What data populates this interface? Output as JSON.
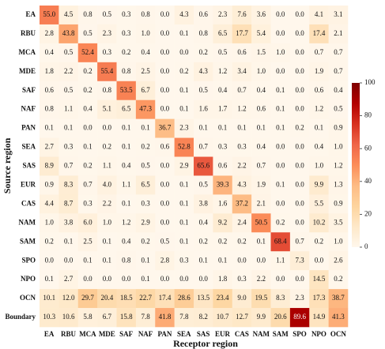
{
  "chart_data": {
    "type": "heatmap",
    "x_label": "Receptor region",
    "y_label": "Source region",
    "x_categories": [
      "EA",
      "RBU",
      "MCA",
      "MDE",
      "SAF",
      "NAF",
      "PAN",
      "SEA",
      "SAS",
      "EUR",
      "CAS",
      "NAM",
      "SAM",
      "SPO",
      "NPO",
      "OCN"
    ],
    "y_categories": [
      "EA",
      "RBU",
      "MCA",
      "MDE",
      "SAF",
      "NAF",
      "PAN",
      "SEA",
      "SAS",
      "EUR",
      "CAS",
      "NAM",
      "SAM",
      "SPO",
      "NPO",
      "OCN",
      "Boundary"
    ],
    "values": [
      [
        55.0,
        4.5,
        0.8,
        0.5,
        0.3,
        0.8,
        0.0,
        4.3,
        0.6,
        2.3,
        7.6,
        3.6,
        0.0,
        0.0,
        4.1,
        3.1
      ],
      [
        2.8,
        43.8,
        0.5,
        2.3,
        0.3,
        1.0,
        0.0,
        0.1,
        0.8,
        6.5,
        17.7,
        5.4,
        0.0,
        0.0,
        17.4,
        2.1
      ],
      [
        0.4,
        0.5,
        52.4,
        0.3,
        0.2,
        0.4,
        0.0,
        0.0,
        0.2,
        0.5,
        0.6,
        1.5,
        1.0,
        0.0,
        0.7,
        0.7
      ],
      [
        1.8,
        2.2,
        0.2,
        55.4,
        0.8,
        2.5,
        0.0,
        0.2,
        4.3,
        1.2,
        3.4,
        1.0,
        0.0,
        0.0,
        1.9,
        0.7
      ],
      [
        0.6,
        0.5,
        0.2,
        0.8,
        53.5,
        6.7,
        0.0,
        0.1,
        0.5,
        0.4,
        0.7,
        0.4,
        0.1,
        0.0,
        0.6,
        0.4
      ],
      [
        0.8,
        1.1,
        0.4,
        5.1,
        6.5,
        47.3,
        0.0,
        0.1,
        1.6,
        1.7,
        1.2,
        0.6,
        0.1,
        0.0,
        1.2,
        0.5
      ],
      [
        0.1,
        0.1,
        0.0,
        0.0,
        0.1,
        0.1,
        36.7,
        2.3,
        0.1,
        0.1,
        0.1,
        0.1,
        0.1,
        0.2,
        0.1,
        0.9
      ],
      [
        2.7,
        0.3,
        0.1,
        0.2,
        0.1,
        0.2,
        0.6,
        52.8,
        0.7,
        0.3,
        0.3,
        0.4,
        0.0,
        0.0,
        0.4,
        1.0
      ],
      [
        8.9,
        0.7,
        0.2,
        1.1,
        0.4,
        0.5,
        0.0,
        2.9,
        65.6,
        0.6,
        2.2,
        0.7,
        0.0,
        0.0,
        1.0,
        1.2
      ],
      [
        0.9,
        8.3,
        0.7,
        4.0,
        1.1,
        6.5,
        0.0,
        0.1,
        0.5,
        39.3,
        4.3,
        1.9,
        0.1,
        0.0,
        9.9,
        1.3
      ],
      [
        4.4,
        8.7,
        0.3,
        2.2,
        0.1,
        0.3,
        0.0,
        0.1,
        3.8,
        1.6,
        37.2,
        2.1,
        0.0,
        0.0,
        5.5,
        0.9
      ],
      [
        1.0,
        3.8,
        6.0,
        1.0,
        1.2,
        2.9,
        0.0,
        0.1,
        0.4,
        9.2,
        2.4,
        50.5,
        0.2,
        0.0,
        10.2,
        3.5
      ],
      [
        0.2,
        0.1,
        2.5,
        0.1,
        0.4,
        0.2,
        0.5,
        0.1,
        0.2,
        0.2,
        0.2,
        0.1,
        68.4,
        0.7,
        0.2,
        1.0
      ],
      [
        0.0,
        0.0,
        0.1,
        0.1,
        0.8,
        0.1,
        2.8,
        0.3,
        0.1,
        0.1,
        0.0,
        0.0,
        1.1,
        7.3,
        0.0,
        2.6
      ],
      [
        0.1,
        2.7,
        0.0,
        0.0,
        0.0,
        0.1,
        0.0,
        0.0,
        0.0,
        1.8,
        0.3,
        2.2,
        0.0,
        0.0,
        14.5,
        0.2
      ],
      [
        10.1,
        12.0,
        29.7,
        20.4,
        18.5,
        22.7,
        17.4,
        28.6,
        13.5,
        23.4,
        9.0,
        19.5,
        8.3,
        2.3,
        17.3,
        38.7
      ],
      [
        10.3,
        10.6,
        5.8,
        6.7,
        15.8,
        7.8,
        41.8,
        7.8,
        8.2,
        10.7,
        12.7,
        9.9,
        20.6,
        89.6,
        14.9,
        41.3
      ]
    ],
    "value_labels": [
      [
        "55.0",
        "4.5",
        "0.8",
        "0.5",
        "0.3",
        "0.8",
        "0.0",
        "4.3",
        "0.6",
        "2.3",
        "7.6",
        "3.6",
        "0.0",
        "0.0",
        "4.1",
        "3.1"
      ],
      [
        "2.8",
        "43.8",
        "0.5",
        "2.3",
        "0.3",
        "1.0",
        "0.0",
        "0.1",
        "0.8",
        "6.5",
        "17.7",
        "5.4",
        "0.0",
        "0.0",
        "17.4",
        "2.1"
      ],
      [
        "0.4",
        "0.5",
        "52.4",
        "0.3",
        "0.2",
        "0.4",
        "0.0",
        "0.0",
        "0.2",
        "0.5",
        "0.6",
        "1.5",
        "1.0",
        "0.0",
        "0.7",
        "0.7"
      ],
      [
        "1.8",
        "2.2",
        "0.2",
        "55.4",
        "0.8",
        "2.5",
        "0.0",
        "0.2",
        "4.3",
        "1.2",
        "3.4",
        "1.0",
        "0.0",
        "0.0",
        "1.9",
        "0.7"
      ],
      [
        "0.6",
        "0.5",
        "0.2",
        "0.8",
        "53.5",
        "6.7",
        "0.0",
        "0.1",
        "0.5",
        "0.4",
        "0.7",
        "0.4",
        "0.1",
        "0.0",
        "0.6",
        "0.4"
      ],
      [
        "0.8",
        "1.1",
        "0.4",
        "5.1",
        "6.5",
        "47.3",
        "0.0",
        "0.1",
        "1.6",
        "1.7",
        "1.2",
        "0.6",
        "0.1",
        "0.0",
        "1.2",
        "0.5"
      ],
      [
        "0.1",
        "0.1",
        "0.0",
        "0.0",
        "0.1",
        "0.1",
        "36.7",
        "2.3",
        "0.1",
        "0.1",
        "0.1",
        "0.1",
        "0.1",
        "0.2",
        "0.1",
        "0.9"
      ],
      [
        "2.7",
        "0.3",
        "0.1",
        "0.2",
        "0.1",
        "0.2",
        "0.6",
        "52.8",
        "0.7",
        "0.3",
        "0.3",
        "0.4",
        "0.0",
        "0.0",
        "0.4",
        "1.0"
      ],
      [
        "8.9",
        "0.7",
        "0.2",
        "1.1",
        "0.4",
        "0.5",
        "0.0",
        "2.9",
        "65.6",
        "0.6",
        "2.2",
        "0.7",
        "0.0",
        "0.0",
        "1.0",
        "1.2"
      ],
      [
        "0.9",
        "8.3",
        "0.7",
        "4.0",
        "1.1",
        "6.5",
        "0.0",
        "0.1",
        "0.5",
        "39.3",
        "4.3",
        "1.9",
        "0.1",
        "0.0",
        "9.9",
        "1.3"
      ],
      [
        "4.4",
        "8.7",
        "0.3",
        "2.2",
        "0.1",
        "0.3",
        "0.0",
        "0.1",
        "3.8",
        "1.6",
        "37.2",
        "2.1",
        "0.0",
        "0.0",
        "5.5",
        "0.9"
      ],
      [
        "1.0",
        "3.8",
        "6.0",
        "1.0",
        "1.2",
        "2.9",
        "0.0",
        "0.1",
        "0.4",
        "9.2",
        "2.4",
        "50.5",
        "0.2",
        "0.0",
        "10.2",
        "3.5"
      ],
      [
        "0.2",
        "0.1",
        "2.5",
        "0.1",
        "0.4",
        "0.2",
        "0.5",
        "0.1",
        "0.2",
        "0.2",
        "0.2",
        "0.1",
        "68.4",
        "0.7",
        "0.2",
        "1.0"
      ],
      [
        "0.0",
        "0.0",
        "0.1",
        "0.1",
        "0.8",
        "0.1",
        "2.8",
        "0.3",
        "0.1",
        "0.1",
        "0.0",
        "0.0",
        "1.1",
        "7.3",
        "0.0",
        "2.6"
      ],
      [
        "0.1",
        "2.7",
        "0.0",
        "0.0",
        "0.0",
        "0.1",
        "0.0",
        "0.0",
        "0.0",
        "1.8",
        "0.3",
        "2.2",
        "0.0",
        "0.0",
        "14.5",
        "0.2"
      ],
      [
        "10.1",
        "12.0",
        "29.7",
        "20.4",
        "18.5",
        "22.7",
        "17.4",
        "28.6",
        "13.5",
        "23.4",
        "9.0",
        "19.5",
        "8.3",
        "2.3",
        "17.3",
        "38.7"
      ],
      [
        "10.3",
        "10.6",
        "5.8",
        "6.7",
        "15.8",
        "7.8",
        "41.8",
        "7.8",
        "8.2",
        "10.7",
        "12.7",
        "9.9",
        "20.6",
        "89.6",
        "14.9",
        "41.3"
      ]
    ],
    "clim": [
      0,
      100
    ],
    "cticks": [
      0,
      20,
      40,
      60,
      80,
      100
    ],
    "colormap": "OrRd"
  }
}
